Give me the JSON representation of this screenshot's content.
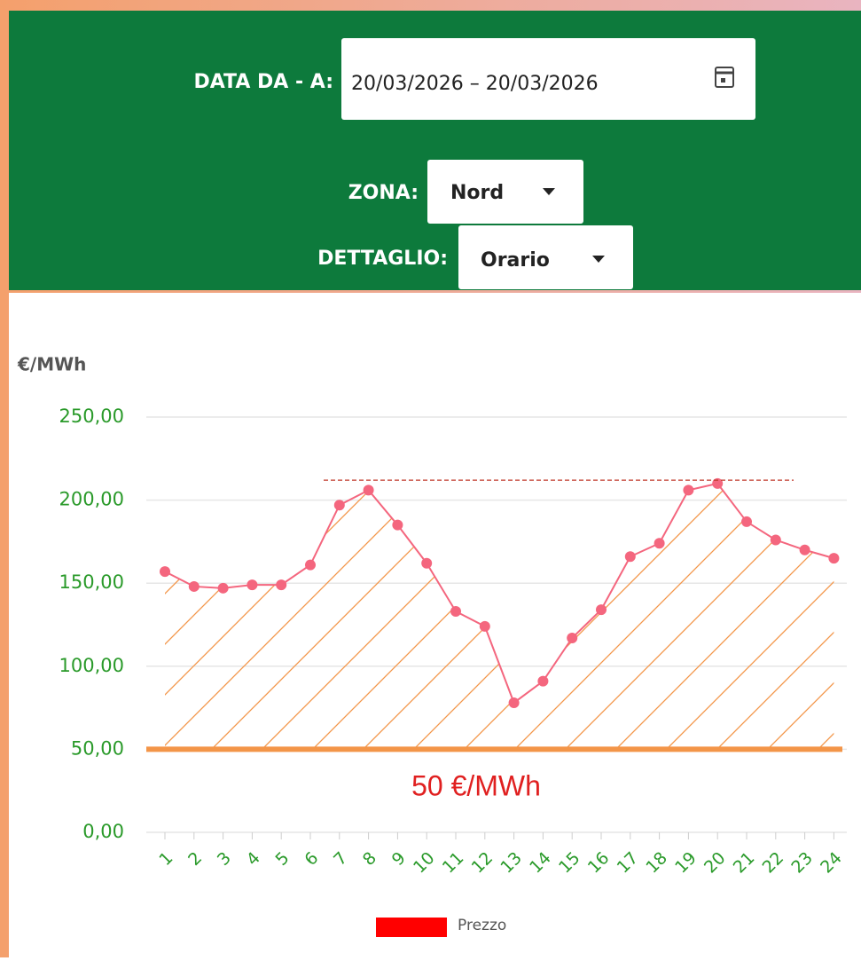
{
  "filters": {
    "date_label": "DATA DA - A:",
    "date_value": "20/03/2026 – 20/03/2026",
    "zone_label": "ZONA:",
    "zone_value": "Nord",
    "detail_label": "DETTAGLIO:",
    "detail_value": "Orario"
  },
  "chart_data": {
    "type": "line",
    "y_label": "€/MWh",
    "categories": [
      "1",
      "2",
      "3",
      "4",
      "5",
      "6",
      "7",
      "8",
      "9",
      "10",
      "11",
      "12",
      "13",
      "14",
      "15",
      "16",
      "17",
      "18",
      "19",
      "20",
      "21",
      "22",
      "23",
      "24"
    ],
    "series": [
      {
        "name": "Prezzo",
        "color": "#f4667e",
        "values": [
          157,
          148,
          147,
          149,
          149,
          161,
          197,
          206,
          185,
          162,
          133,
          124,
          78,
          91,
          117,
          134,
          166,
          174,
          206,
          210,
          187,
          176,
          170,
          165
        ]
      }
    ],
    "legend_color": "#ff0000",
    "ylim": [
      0,
      250
    ],
    "yticks": [
      {
        "value": 0,
        "label": "0,00"
      },
      {
        "value": 50,
        "label": "50,00"
      },
      {
        "value": 100,
        "label": "100,00"
      },
      {
        "value": 150,
        "label": "150,00"
      },
      {
        "value": 200,
        "label": "200,00"
      },
      {
        "value": 250,
        "label": "250,00"
      }
    ],
    "grid": true,
    "threshold": {
      "value": 50,
      "label": "50 €/MWh",
      "color": "#f39548"
    },
    "reference_line": {
      "value": 212,
      "color": "#c0392b"
    }
  }
}
